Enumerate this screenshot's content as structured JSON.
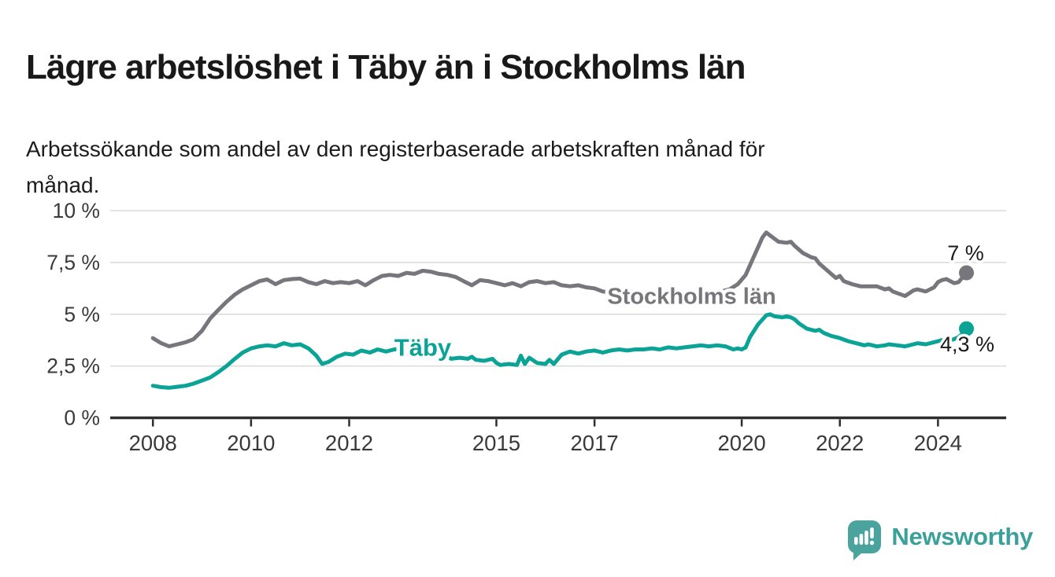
{
  "title": "Lägre arbetslöshet i Täby än i Stockholms län",
  "subtitle": {
    "lines": [
      "Arbetssökande som andel av den registerbaserade arbetskraften månad för",
      "månad."
    ]
  },
  "branding": {
    "wordmark": "Newsworthy",
    "icon": "bar-chart-exclamation-speech-bubble",
    "icon_color": "#4aa49d",
    "text_color": "#3aa19a"
  },
  "colors": {
    "stockholm_line": "#76767c",
    "taby_line": "#0aa396",
    "end_label_text": "#1a1a1a",
    "grid": "#dadada",
    "axis": "#2e2e31",
    "tick_label": "#3a3a3c",
    "background": "#ffffff"
  },
  "chart_data": {
    "type": "line",
    "unit": "percent",
    "grid": "horizontal-only",
    "legend_position": "inline-on-lines",
    "x_axis": {
      "range_years": [
        2007.13,
        2025.39
      ],
      "ticks": [
        2008,
        2010,
        2012,
        2015,
        2017,
        2020,
        2022,
        2024
      ],
      "tick_labels": [
        "2008",
        "2010",
        "2012",
        "2015",
        "2017",
        "2020",
        "2022",
        "2024"
      ]
    },
    "y_axis": {
      "range": [
        0,
        10
      ],
      "tick_values": [
        0,
        2.5,
        5,
        7.5,
        10
      ],
      "tick_labels": [
        "0 %",
        "2,5 %",
        "5 %",
        "7,5 %",
        "10 %"
      ]
    },
    "series": [
      {
        "name": "Stockholms län",
        "color": "#76767c",
        "end_label": "7 %",
        "end_value": 7.0,
        "label_anchor": {
          "year": 2018.98,
          "value": 5.92
        },
        "points": [
          [
            2008.0,
            3.85
          ],
          [
            2008.17,
            3.6
          ],
          [
            2008.33,
            3.45
          ],
          [
            2008.5,
            3.55
          ],
          [
            2008.67,
            3.65
          ],
          [
            2008.83,
            3.8
          ],
          [
            2009.0,
            4.2
          ],
          [
            2009.17,
            4.8
          ],
          [
            2009.33,
            5.2
          ],
          [
            2009.5,
            5.6
          ],
          [
            2009.67,
            5.95
          ],
          [
            2009.83,
            6.2
          ],
          [
            2010.0,
            6.4
          ],
          [
            2010.17,
            6.6
          ],
          [
            2010.33,
            6.68
          ],
          [
            2010.5,
            6.45
          ],
          [
            2010.67,
            6.65
          ],
          [
            2010.83,
            6.7
          ],
          [
            2011.0,
            6.72
          ],
          [
            2011.17,
            6.55
          ],
          [
            2011.33,
            6.45
          ],
          [
            2011.5,
            6.6
          ],
          [
            2011.67,
            6.5
          ],
          [
            2011.83,
            6.55
          ],
          [
            2012.0,
            6.5
          ],
          [
            2012.17,
            6.6
          ],
          [
            2012.33,
            6.4
          ],
          [
            2012.5,
            6.65
          ],
          [
            2012.67,
            6.85
          ],
          [
            2012.83,
            6.9
          ],
          [
            2013.0,
            6.85
          ],
          [
            2013.17,
            7.0
          ],
          [
            2013.33,
            6.95
          ],
          [
            2013.5,
            7.1
          ],
          [
            2013.67,
            7.05
          ],
          [
            2013.83,
            6.95
          ],
          [
            2014.0,
            6.9
          ],
          [
            2014.17,
            6.8
          ],
          [
            2014.33,
            6.6
          ],
          [
            2014.5,
            6.4
          ],
          [
            2014.67,
            6.65
          ],
          [
            2014.83,
            6.6
          ],
          [
            2015.0,
            6.5
          ],
          [
            2015.17,
            6.4
          ],
          [
            2015.33,
            6.5
          ],
          [
            2015.5,
            6.35
          ],
          [
            2015.67,
            6.55
          ],
          [
            2015.83,
            6.6
          ],
          [
            2016.0,
            6.5
          ],
          [
            2016.17,
            6.55
          ],
          [
            2016.33,
            6.4
          ],
          [
            2016.5,
            6.35
          ],
          [
            2016.67,
            6.4
          ],
          [
            2016.83,
            6.3
          ],
          [
            2017.0,
            6.25
          ],
          [
            2017.17,
            6.1
          ],
          [
            2017.33,
            6.05
          ],
          [
            2017.5,
            6.0
          ],
          [
            2017.75,
            5.95
          ],
          [
            2018.0,
            5.95
          ],
          [
            2018.25,
            5.9
          ],
          [
            2018.5,
            5.9
          ],
          [
            2018.75,
            5.95
          ],
          [
            2019.0,
            5.95
          ],
          [
            2019.25,
            6.0
          ],
          [
            2019.5,
            6.05
          ],
          [
            2019.75,
            6.2
          ],
          [
            2019.92,
            6.45
          ],
          [
            2020.08,
            6.9
          ],
          [
            2020.25,
            7.8
          ],
          [
            2020.42,
            8.7
          ],
          [
            2020.5,
            8.95
          ],
          [
            2020.58,
            8.8
          ],
          [
            2020.75,
            8.5
          ],
          [
            2020.92,
            8.45
          ],
          [
            2021.0,
            8.5
          ],
          [
            2021.08,
            8.3
          ],
          [
            2021.25,
            7.95
          ],
          [
            2021.42,
            7.75
          ],
          [
            2021.5,
            7.7
          ],
          [
            2021.58,
            7.45
          ],
          [
            2021.75,
            7.1
          ],
          [
            2021.92,
            6.75
          ],
          [
            2022.0,
            6.85
          ],
          [
            2022.08,
            6.6
          ],
          [
            2022.25,
            6.45
          ],
          [
            2022.42,
            6.35
          ],
          [
            2022.58,
            6.35
          ],
          [
            2022.75,
            6.35
          ],
          [
            2022.92,
            6.2
          ],
          [
            2023.0,
            6.25
          ],
          [
            2023.08,
            6.1
          ],
          [
            2023.25,
            5.95
          ],
          [
            2023.33,
            5.88
          ],
          [
            2023.5,
            6.15
          ],
          [
            2023.58,
            6.2
          ],
          [
            2023.75,
            6.1
          ],
          [
            2023.92,
            6.3
          ],
          [
            2024.0,
            6.55
          ],
          [
            2024.08,
            6.65
          ],
          [
            2024.17,
            6.7
          ],
          [
            2024.33,
            6.5
          ],
          [
            2024.42,
            6.55
          ],
          [
            2024.58,
            7.0
          ]
        ]
      },
      {
        "name": "Täby",
        "color": "#0aa396",
        "end_label": "4,3 %",
        "end_value": 4.3,
        "label_anchor": {
          "year": 2013.5,
          "value": 3.42
        },
        "points": [
          [
            2008.0,
            1.55
          ],
          [
            2008.17,
            1.48
          ],
          [
            2008.33,
            1.45
          ],
          [
            2008.5,
            1.5
          ],
          [
            2008.67,
            1.55
          ],
          [
            2008.83,
            1.65
          ],
          [
            2009.0,
            1.8
          ],
          [
            2009.17,
            1.95
          ],
          [
            2009.33,
            2.2
          ],
          [
            2009.5,
            2.5
          ],
          [
            2009.67,
            2.85
          ],
          [
            2009.83,
            3.15
          ],
          [
            2010.0,
            3.35
          ],
          [
            2010.17,
            3.45
          ],
          [
            2010.33,
            3.5
          ],
          [
            2010.5,
            3.45
          ],
          [
            2010.67,
            3.6
          ],
          [
            2010.83,
            3.5
          ],
          [
            2011.0,
            3.55
          ],
          [
            2011.17,
            3.35
          ],
          [
            2011.33,
            3.0
          ],
          [
            2011.45,
            2.6
          ],
          [
            2011.58,
            2.7
          ],
          [
            2011.75,
            2.95
          ],
          [
            2011.92,
            3.1
          ],
          [
            2012.08,
            3.05
          ],
          [
            2012.25,
            3.25
          ],
          [
            2012.42,
            3.15
          ],
          [
            2012.58,
            3.3
          ],
          [
            2012.75,
            3.2
          ],
          [
            2012.92,
            3.3
          ],
          [
            2013.08,
            3.35
          ],
          [
            2013.25,
            3.4
          ],
          [
            2013.42,
            3.35
          ],
          [
            2013.58,
            3.4
          ],
          [
            2013.75,
            3.3
          ],
          [
            2013.92,
            3.1
          ],
          [
            2014.08,
            2.85
          ],
          [
            2014.25,
            2.9
          ],
          [
            2014.42,
            2.85
          ],
          [
            2014.5,
            2.95
          ],
          [
            2014.58,
            2.8
          ],
          [
            2014.75,
            2.75
          ],
          [
            2014.92,
            2.85
          ],
          [
            2015.0,
            2.65
          ],
          [
            2015.08,
            2.55
          ],
          [
            2015.25,
            2.6
          ],
          [
            2015.42,
            2.55
          ],
          [
            2015.5,
            3.0
          ],
          [
            2015.58,
            2.6
          ],
          [
            2015.67,
            2.9
          ],
          [
            2015.83,
            2.65
          ],
          [
            2016.0,
            2.6
          ],
          [
            2016.08,
            2.8
          ],
          [
            2016.17,
            2.6
          ],
          [
            2016.33,
            3.05
          ],
          [
            2016.5,
            3.2
          ],
          [
            2016.67,
            3.1
          ],
          [
            2016.83,
            3.2
          ],
          [
            2017.0,
            3.25
          ],
          [
            2017.17,
            3.15
          ],
          [
            2017.33,
            3.25
          ],
          [
            2017.5,
            3.3
          ],
          [
            2017.67,
            3.25
          ],
          [
            2017.83,
            3.3
          ],
          [
            2018.0,
            3.3
          ],
          [
            2018.17,
            3.35
          ],
          [
            2018.33,
            3.3
          ],
          [
            2018.5,
            3.4
          ],
          [
            2018.67,
            3.35
          ],
          [
            2018.83,
            3.4
          ],
          [
            2019.0,
            3.45
          ],
          [
            2019.17,
            3.5
          ],
          [
            2019.33,
            3.45
          ],
          [
            2019.5,
            3.5
          ],
          [
            2019.67,
            3.45
          ],
          [
            2019.83,
            3.3
          ],
          [
            2019.92,
            3.35
          ],
          [
            2020.0,
            3.3
          ],
          [
            2020.08,
            3.4
          ],
          [
            2020.17,
            3.9
          ],
          [
            2020.33,
            4.5
          ],
          [
            2020.5,
            4.95
          ],
          [
            2020.58,
            5.0
          ],
          [
            2020.67,
            4.9
          ],
          [
            2020.83,
            4.85
          ],
          [
            2020.92,
            4.9
          ],
          [
            2021.0,
            4.85
          ],
          [
            2021.08,
            4.75
          ],
          [
            2021.17,
            4.55
          ],
          [
            2021.33,
            4.3
          ],
          [
            2021.5,
            4.2
          ],
          [
            2021.58,
            4.25
          ],
          [
            2021.67,
            4.1
          ],
          [
            2021.83,
            3.95
          ],
          [
            2022.0,
            3.85
          ],
          [
            2022.17,
            3.7
          ],
          [
            2022.33,
            3.6
          ],
          [
            2022.5,
            3.5
          ],
          [
            2022.58,
            3.55
          ],
          [
            2022.75,
            3.45
          ],
          [
            2022.92,
            3.5
          ],
          [
            2023.0,
            3.55
          ],
          [
            2023.17,
            3.5
          ],
          [
            2023.33,
            3.45
          ],
          [
            2023.5,
            3.55
          ],
          [
            2023.58,
            3.6
          ],
          [
            2023.75,
            3.55
          ],
          [
            2023.92,
            3.65
          ],
          [
            2024.0,
            3.7
          ],
          [
            2024.08,
            3.75
          ],
          [
            2024.17,
            3.7
          ],
          [
            2024.33,
            3.8
          ],
          [
            2024.42,
            3.9
          ],
          [
            2024.5,
            4.05
          ],
          [
            2024.58,
            4.3
          ]
        ]
      }
    ]
  }
}
